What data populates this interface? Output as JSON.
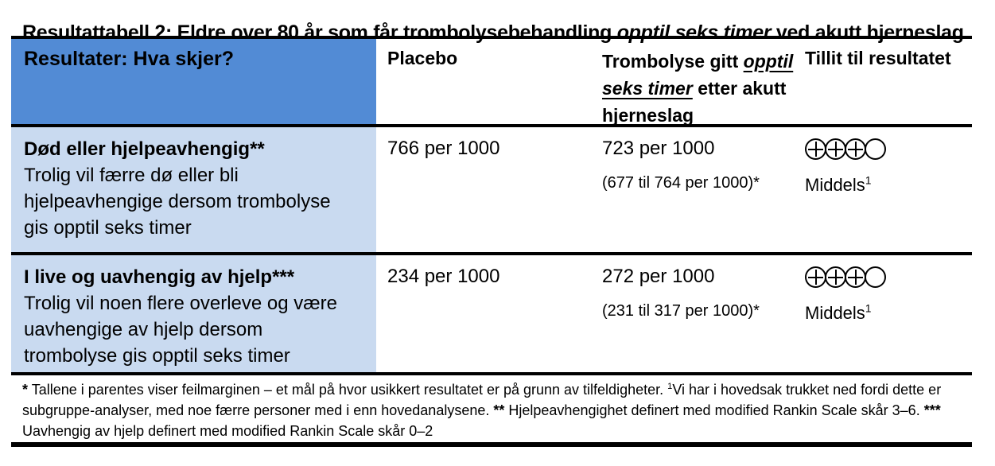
{
  "title": {
    "prefix": "Resultattabell 2: Eldre over 80 år som får trombolysebehandling ",
    "italic": "opptil seks timer",
    "suffix": " ved akutt hjerneslag"
  },
  "table": {
    "header": {
      "outcome": "Resultater: Hva skjer?",
      "placebo": "Placebo",
      "intervention": {
        "prefix": "Trombolyse gitt ",
        "italic_underline": "opptil seks timer",
        "suffix": " etter akutt hjerneslag"
      },
      "confidence": "Tillit til resultatet"
    },
    "rows": [
      {
        "outcome_title": "Død eller hjelpeavhengig**",
        "outcome_description_lines": [
          "Trolig vil færre dø eller bli",
          "hjelpeavhengige dersom trombolyse",
          "gis opptil seks timer"
        ],
        "placebo_value": "766 per 1000",
        "intervention_value": "723 per 1000",
        "intervention_ci": "(677 til 764 per 1000)*",
        "confidence_rating": {
          "filled": 3,
          "empty": 1
        },
        "confidence_label": "Middels",
        "confidence_label_sup": "1"
      },
      {
        "outcome_title": "I live og uavhengig av hjelp***",
        "outcome_description_lines": [
          "Trolig vil noen flere overleve og være",
          "uavhengige av hjelp dersom",
          "trombolyse gis opptil seks timer"
        ],
        "placebo_value": "234 per 1000",
        "intervention_value": "272 per 1000",
        "intervention_ci": "(231 til 317 per 1000)*",
        "confidence_rating": {
          "filled": 3,
          "empty": 1
        },
        "confidence_label": "Middels",
        "confidence_label_sup": "1"
      }
    ]
  },
  "footnote": {
    "star1": "*",
    "part1": " Tallene i parentes viser feilmarginen – et mål på hvor usikkert resultatet er på grunn av tilfeldigheter. ",
    "sup1": "1",
    "part2": "Vi har i hovedsak trukket ned fordi dette er subgruppe-analyser, med noe færre personer med i enn hovedanalysene. ",
    "star2": "**",
    "part3": " Hjelpeavhengighet definert med modified Rankin Scale skår 3–6. ",
    "star3": "***",
    "part4": " Uavhengig av hjelp definert med modified Rankin Scale skår 0–2"
  },
  "colors": {
    "header_blue": "#528BD5",
    "row_blue": "#C9DAF0",
    "line_black": "#000000"
  }
}
